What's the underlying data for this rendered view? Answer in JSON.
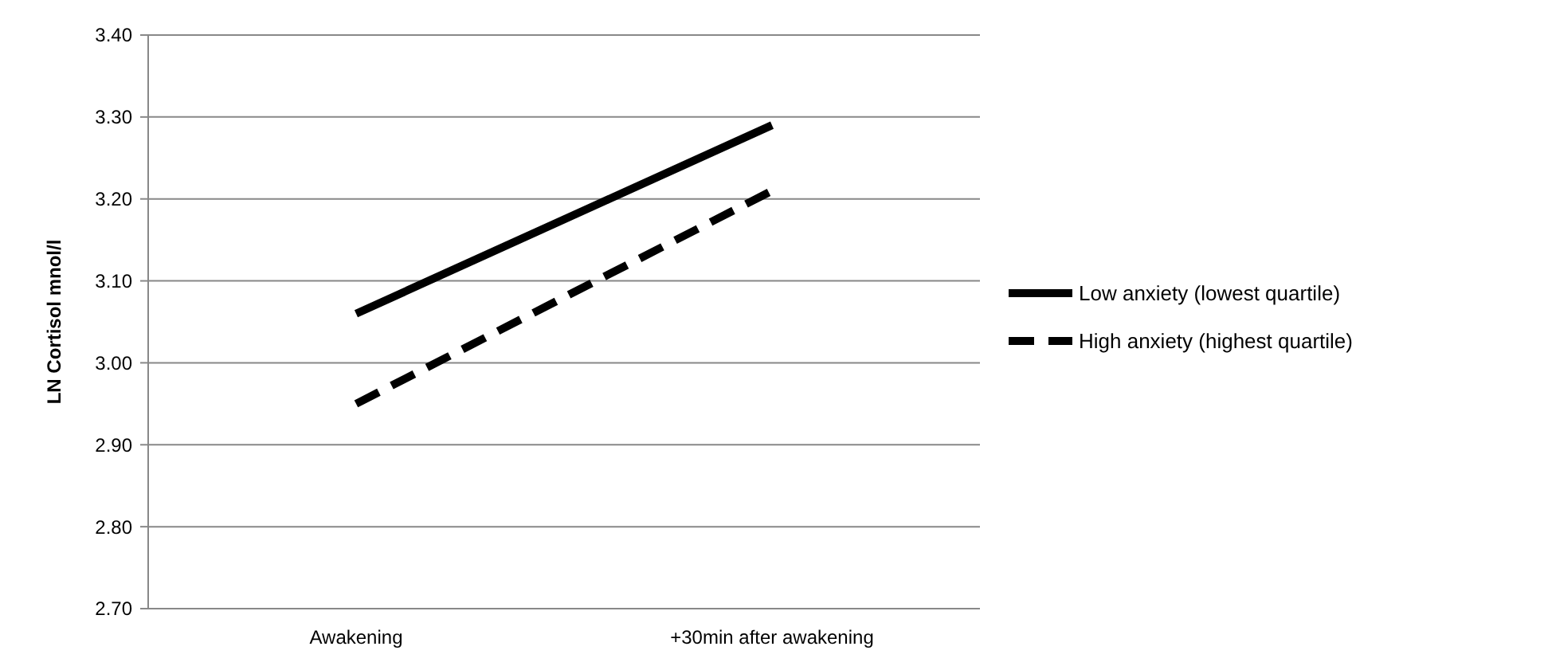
{
  "chart_data": {
    "type": "line",
    "ylabel": "LN Cortisol mnol/l",
    "categories": [
      "Awakening",
      "+30min after awakening"
    ],
    "series": [
      {
        "name": "Low anxiety (lowest quartile)",
        "color": "#000000",
        "values": [
          3.06,
          3.29
        ],
        "line_style": "solid"
      },
      {
        "name": "High anxiety (highest quartile)",
        "color": "#000000",
        "values": [
          2.95,
          3.21
        ],
        "line_style": "dashed"
      }
    ],
    "ylim": [
      2.7,
      3.4
    ],
    "yticks": [
      {
        "value": 2.7,
        "label": "2.70"
      },
      {
        "value": 2.8,
        "label": "2.80"
      },
      {
        "value": 2.9,
        "label": "2.90"
      },
      {
        "value": 3.0,
        "label": "3.00"
      },
      {
        "value": 3.1,
        "label": "3.10"
      },
      {
        "value": 3.2,
        "label": "3.20"
      },
      {
        "value": 3.3,
        "label": "3.30"
      },
      {
        "value": 3.4,
        "label": "3.40"
      }
    ],
    "grid": "y",
    "legend": "right",
    "marker": "none"
  }
}
